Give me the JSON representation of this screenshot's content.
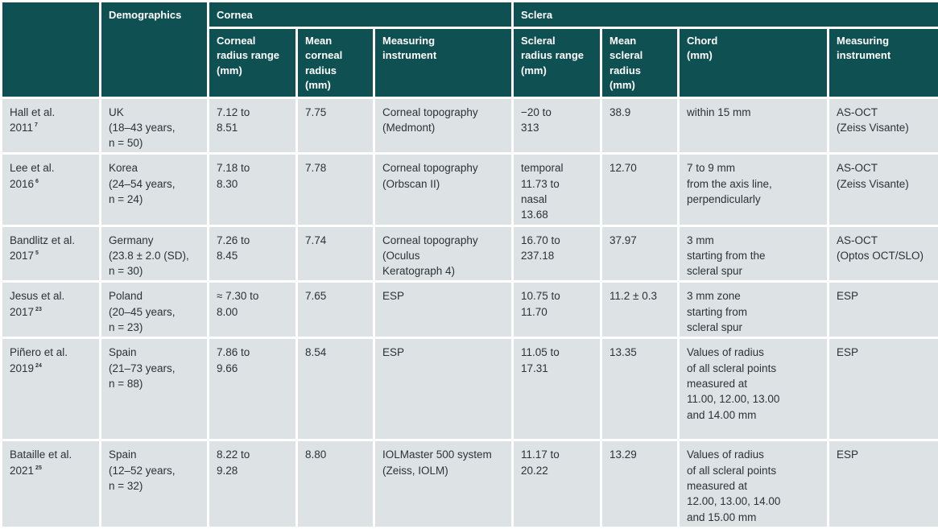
{
  "table": {
    "group_headers": {
      "demographics": "Demographics",
      "cornea": "Cornea",
      "sclera": "Sclera"
    },
    "sub_headers": {
      "corneal_radius_range": "Corneal\nradius range\n(mm)",
      "mean_corneal_radius": "Mean\ncorneal\nradius\n(mm)",
      "cornea_measuring_instrument": "Measuring\ninstrument",
      "scleral_radius_range": "Scleral\nradius range\n(mm)",
      "mean_scleral_radius": "Mean\nscleral\nradius\n(mm)",
      "chord": "Chord\n(mm)",
      "sclera_measuring_instrument": "Measuring\ninstrument"
    },
    "rows": [
      {
        "study": "Hall et al.\n2011",
        "ref": "7",
        "demographics": "UK\n(18–43 years,\nn = 50)",
        "corneal_range": "7.12 to\n8.51",
        "mean_corneal": "7.75",
        "cornea_instrument": "Corneal topography\n(Medmont)",
        "scleral_range": "−20 to\n313",
        "mean_scleral": "38.9",
        "chord": "within 15 mm",
        "sclera_instrument": "AS-OCT\n(Zeiss Visante)"
      },
      {
        "study": "Lee et al.\n2016",
        "ref": "6",
        "demographics": "Korea\n(24–54 years,\nn = 24)",
        "corneal_range": "7.18 to\n8.30",
        "mean_corneal": "7.78",
        "cornea_instrument": "Corneal topography\n(Orbscan II)",
        "scleral_range": "temporal\n11.73 to\nnasal\n13.68",
        "mean_scleral": "12.70",
        "chord": "7 to 9 mm\nfrom the axis line,\nperpendicularly",
        "sclera_instrument": "AS-OCT\n(Zeiss Visante)"
      },
      {
        "study": "Bandlitz et al.\n2017",
        "ref": "5",
        "demographics": "Germany\n(23.8 ± 2.0 (SD),\nn = 30)",
        "corneal_range": "7.26 to\n8.45",
        "mean_corneal": "7.74",
        "cornea_instrument": "Corneal topography\n(Oculus\nKeratograph 4)",
        "scleral_range": "16.70 to\n237.18",
        "mean_scleral": "37.97",
        "chord": "3 mm\nstarting from the\nscleral spur",
        "sclera_instrument": "AS-OCT\n(Optos OCT/SLO)"
      },
      {
        "study": "Jesus et al.\n2017",
        "ref": "23",
        "demographics": "Poland\n(20–45 years,\nn = 23)",
        "corneal_range": "≈ 7.30 to\n8.00",
        "mean_corneal": "7.65",
        "cornea_instrument": "ESP",
        "scleral_range": "10.75 to\n11.70",
        "mean_scleral": "11.2 ± 0.3",
        "chord": "3 mm zone\nstarting from\nscleral spur",
        "sclera_instrument": "ESP"
      },
      {
        "study": "Piñero et al.\n2019",
        "ref": "24",
        "demographics": "Spain\n(21–73 years,\nn = 88)",
        "corneal_range": "7.86 to\n9.66",
        "mean_corneal": "8.54",
        "cornea_instrument": "ESP",
        "scleral_range": "11.05 to\n17.31",
        "mean_scleral": "13.35",
        "chord": "Values of radius\nof all scleral points\nmeasured at\n11.00, 12.00, 13.00\nand 14.00 mm",
        "sclera_instrument": "ESP"
      },
      {
        "study": "Bataille et al.\n2021",
        "ref": "25",
        "demographics": "Spain\n(12–52 years,\nn = 32)",
        "corneal_range": "8.22 to\n9.28",
        "mean_corneal": "8.80",
        "cornea_instrument": "IOLMaster 500 system\n(Zeiss, IOLM)",
        "scleral_range": "11.17 to\n20.22",
        "mean_scleral": "13.29",
        "chord": "Values of radius\nof all scleral points\nmeasured at\n12.00, 13.00, 14.00\nand 15.00 mm",
        "sclera_instrument": "ESP"
      }
    ]
  }
}
